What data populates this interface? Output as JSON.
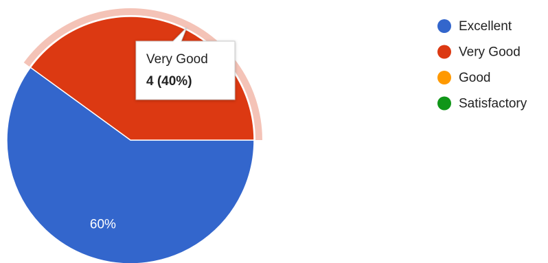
{
  "chart_data": {
    "type": "pie",
    "categories": [
      "Excellent",
      "Very Good",
      "Good",
      "Satisfactory"
    ],
    "values": [
      60,
      40,
      0,
      0
    ],
    "value_labels": [
      "60%",
      null,
      null,
      null
    ],
    "colors": [
      "#3366cc",
      "#dc3912",
      "#ff9900",
      "#109618"
    ],
    "legend": "right",
    "tooltip": {
      "title": "Very Good",
      "value_label": "4 (40%)"
    }
  }
}
